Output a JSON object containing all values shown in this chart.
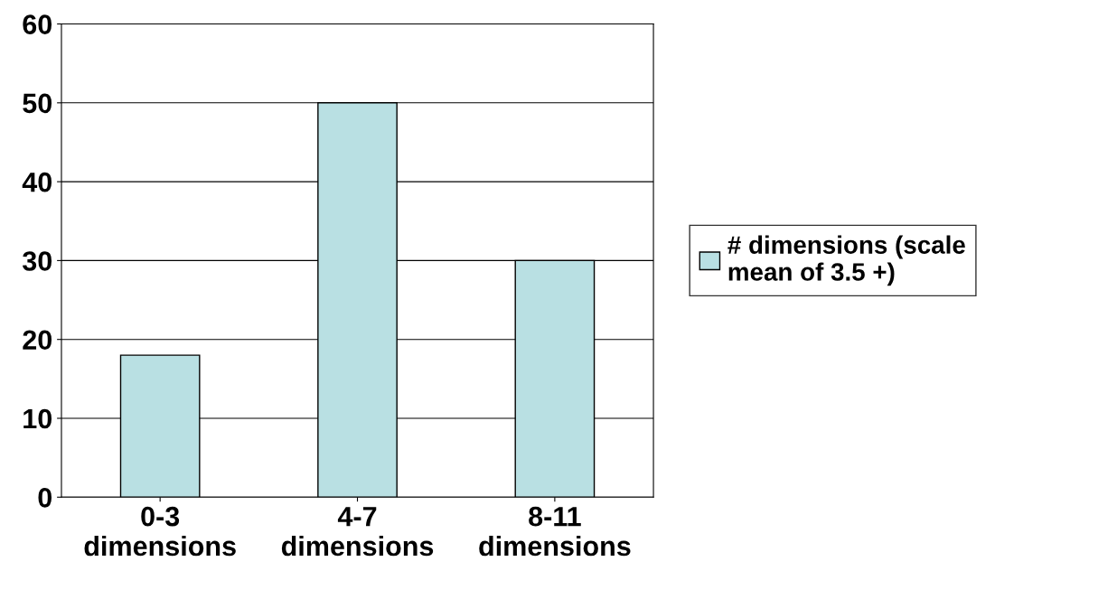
{
  "chart_data": {
    "type": "bar",
    "categories": [
      "0-3\ndimensions",
      "4-7\ndimensions",
      "8-11\ndimensions"
    ],
    "series": [
      {
        "name": "# dimensions (scale\nmean of 3.5 +)",
        "color": "#b9e0e3",
        "values": [
          18,
          50,
          30
        ]
      }
    ],
    "ylim": [
      0,
      60
    ],
    "yticks": [
      0,
      10,
      20,
      30,
      40,
      50,
      60
    ],
    "grid": "y",
    "legend": "right"
  }
}
